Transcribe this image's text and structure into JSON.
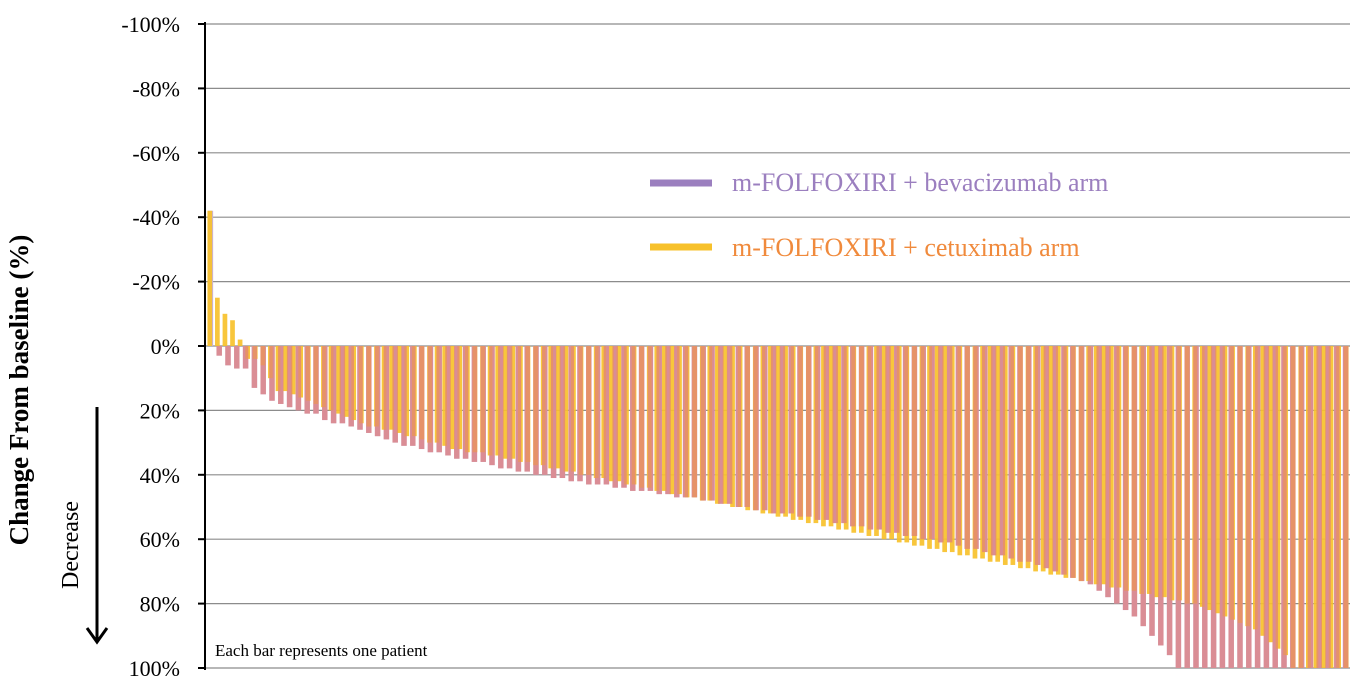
{
  "chart_data": {
    "type": "bar",
    "ylabel": "Change From baseline (%)",
    "direction_label": "Decrease",
    "annotation": "Each bar represents one patient",
    "ylim": [
      -100,
      100
    ],
    "y_axis_inverted": true,
    "y_ticks": [
      -100,
      -80,
      -60,
      -40,
      -20,
      0,
      20,
      40,
      60,
      80,
      100
    ],
    "y_tick_labels": [
      "-100%",
      "-80%",
      "-60%",
      "-40%",
      "-20%",
      "0%",
      "20%",
      "40%",
      "60%",
      "80%",
      "100%"
    ],
    "grid": true,
    "legend_position": "center-right",
    "series": [
      {
        "name": "m-FOLFOXIRI + bevacizumab arm",
        "color": "#9b7fbf",
        "bar_color": "#c9b1d9",
        "values": [
          -42,
          3,
          6,
          7,
          7,
          13,
          15,
          17,
          18,
          19,
          20,
          21,
          21,
          23,
          24,
          24,
          25,
          26,
          27,
          28,
          29,
          30,
          31,
          31,
          32,
          33,
          33,
          34,
          35,
          35,
          36,
          36,
          37,
          38,
          38,
          39,
          39,
          40,
          40,
          41,
          41,
          42,
          42,
          43,
          43,
          43,
          44,
          44,
          45,
          45,
          45,
          46,
          46,
          47,
          47,
          47,
          48,
          48,
          49,
          49,
          50,
          50,
          51,
          51,
          52,
          52,
          52,
          53,
          53,
          54,
          54,
          55,
          55,
          56,
          56,
          57,
          57,
          58,
          58,
          59,
          59,
          60,
          60,
          61,
          61,
          62,
          63,
          63,
          64,
          65,
          65,
          66,
          67,
          67,
          68,
          69,
          70,
          71,
          72,
          73,
          74,
          76,
          78,
          80,
          82,
          84,
          87,
          90,
          93,
          96,
          100,
          100,
          100,
          100,
          100,
          100,
          100,
          100,
          100,
          100,
          100,
          100,
          100,
          100,
          100,
          100,
          100,
          100,
          100,
          100
        ]
      },
      {
        "name": "m-FOLFOXIRI + cetuximab arm",
        "color": "#f7c12b",
        "bar_color": "#f7c12b",
        "values": [
          -42,
          -15,
          -10,
          -8,
          -2,
          4,
          4,
          6,
          10,
          14,
          14,
          15,
          16,
          17,
          18,
          19,
          20,
          21,
          22,
          23,
          24,
          25,
          25,
          26,
          26,
          27,
          28,
          28,
          29,
          30,
          30,
          31,
          32,
          32,
          33,
          33,
          33,
          34,
          34,
          35,
          35,
          36,
          36,
          37,
          37,
          38,
          38,
          39,
          39,
          40,
          40,
          41,
          41,
          42,
          42,
          43,
          43,
          44,
          44,
          45,
          45,
          46,
          46,
          47,
          47,
          48,
          48,
          49,
          49,
          50,
          50,
          51,
          51,
          52,
          52,
          53,
          53,
          54,
          54,
          55,
          55,
          56,
          56,
          57,
          57,
          58,
          58,
          59,
          59,
          60,
          60,
          61,
          61,
          62,
          62,
          63,
          63,
          64,
          64,
          65,
          65,
          66,
          66,
          67,
          67,
          68,
          68,
          69,
          69,
          70,
          70,
          71,
          71,
          72,
          72,
          73,
          73,
          74,
          74,
          75,
          75,
          76,
          76,
          77,
          77,
          78,
          78,
          79,
          79,
          80,
          80,
          81,
          82,
          83,
          84,
          85,
          86,
          87,
          88,
          90,
          92,
          94,
          96,
          100,
          100,
          100,
          100,
          100,
          100,
          100,
          100
        ]
      }
    ]
  }
}
